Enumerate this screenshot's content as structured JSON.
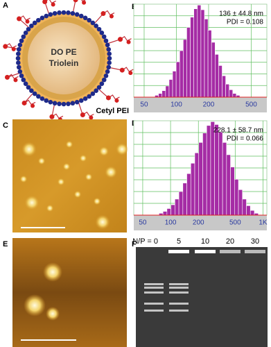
{
  "panels": {
    "A": {
      "label": "A",
      "core_text": [
        "DO PE",
        "Triolein"
      ],
      "polymer_label": "Cetyl PEI"
    },
    "C": {
      "label": "C"
    },
    "E": {
      "label": "E"
    },
    "F": {
      "label": "F",
      "lanes": [
        "N/P = 0",
        "5",
        "10",
        "20",
        "30"
      ]
    }
  },
  "chart_data": [
    {
      "type": "histogram",
      "label": "B",
      "annotations": [
        "136 ± 44.8 nm",
        "PDI = 0.108"
      ],
      "bins": [
        63,
        68,
        73.4,
        79.2,
        85.5,
        92.2,
        99.5,
        107.4,
        115.9,
        125,
        135,
        145.6,
        157.1,
        169.6,
        183,
        197.4,
        213,
        229.9,
        248,
        267.6,
        288.8,
        311.6,
        336.2,
        362.8,
        391.5
      ],
      "values": [
        2,
        4,
        7,
        12,
        19,
        28,
        38,
        50,
        62,
        75,
        86,
        95,
        99,
        94,
        84,
        72,
        59,
        46,
        34,
        23,
        14,
        8,
        4,
        2
      ],
      "color": "#a52ca5",
      "xlim": [
        40,
        700
      ],
      "log_x": true,
      "ylim": [
        0,
        100
      ],
      "xticks": [
        50,
        100,
        200,
        500
      ],
      "grid": true
    },
    {
      "type": "histogram",
      "label": "D",
      "annotations": [
        "228.1 ± 58.7 nm",
        "PDI = 0.066"
      ],
      "bins": [
        75,
        82.8,
        91.4,
        100.9,
        111.4,
        123,
        135.8,
        149.9,
        165.5,
        182.7,
        201.7,
        222.7,
        245.8,
        271.4,
        299.6,
        330.8,
        365.2,
        403.2,
        445.1,
        491.4,
        542.5,
        598.9,
        661.2,
        730,
        805.9,
        889.7
      ],
      "values": [
        2,
        4,
        7,
        11,
        17,
        25,
        34,
        44,
        55,
        66,
        77,
        87,
        95,
        99,
        96,
        88,
        77,
        64,
        51,
        38,
        27,
        17,
        10,
        5,
        2
      ],
      "color": "#a52ca5",
      "xlim": [
        40,
        1100
      ],
      "log_x": true,
      "ylim": [
        0,
        100
      ],
      "xticks": [
        50,
        100,
        200,
        500,
        {
          "value": 1000,
          "label": "1K"
        }
      ],
      "grid": true
    }
  ]
}
